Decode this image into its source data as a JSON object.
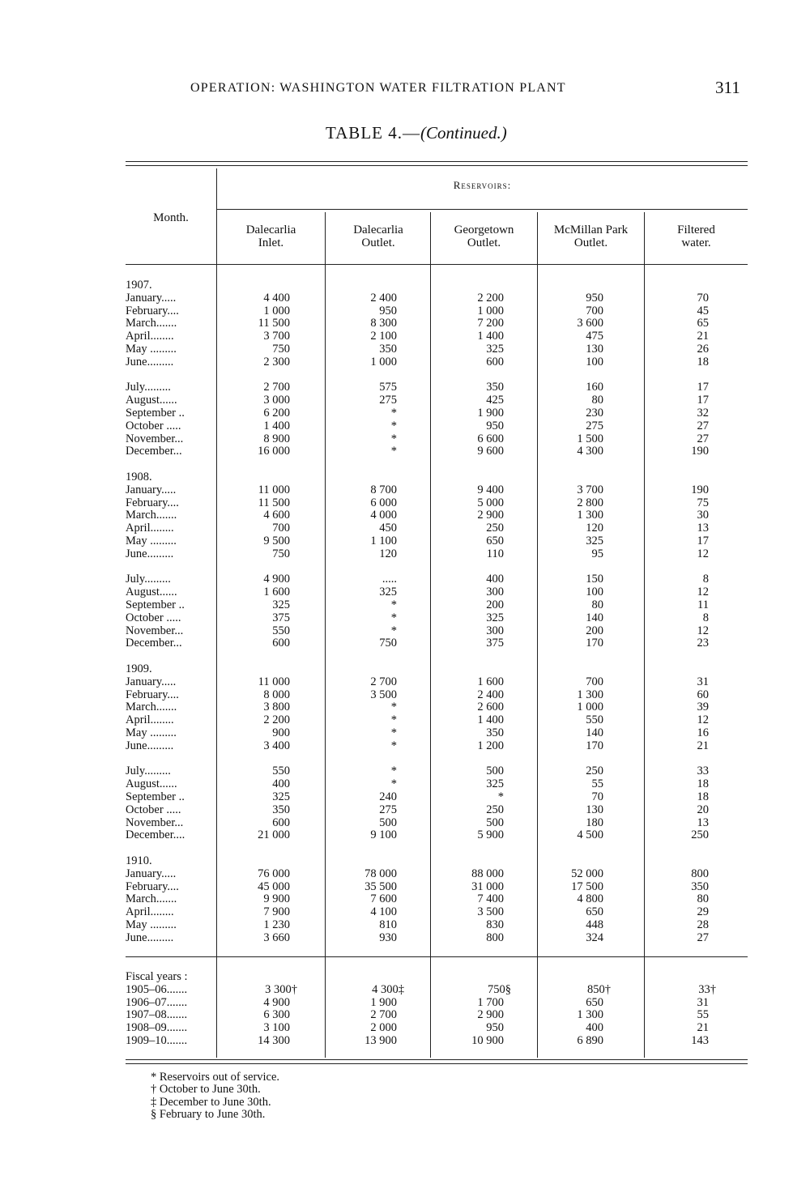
{
  "running_head": "OPERATION: WASHINGTON WATER FILTRATION PLANT",
  "page_number": "311",
  "table_title": "TABLE 4.—",
  "table_title_italic": "(Continued.)",
  "headers": {
    "month": "Month.",
    "group": "Reservoirs:",
    "columns": [
      [
        "Dalecarlia",
        "Inlet."
      ],
      [
        "Dalecarlia",
        "Outlet."
      ],
      [
        "Georgetown",
        "Outlet."
      ],
      [
        "McMillan Park",
        "Outlet."
      ],
      [
        "Filtered",
        "water."
      ]
    ]
  },
  "sections": [
    {
      "year": "1907.",
      "rows": [
        [
          "January.....",
          "4 400",
          "2 400",
          "2 200",
          "950",
          "70"
        ],
        [
          "February....",
          "1 000",
          "950",
          "1 000",
          "700",
          "45"
        ],
        [
          "March.......",
          "11 500",
          "8 300",
          "7 200",
          "3 600",
          "65"
        ],
        [
          "April........",
          "3 700",
          "2 100",
          "1 400",
          "475",
          "21"
        ],
        [
          "May .........",
          "750",
          "350",
          "325",
          "130",
          "26"
        ],
        [
          "June.........",
          "2 300",
          "1 000",
          "600",
          "100",
          "18"
        ],
        null,
        [
          "July.........",
          "2 700",
          "575",
          "350",
          "160",
          "17"
        ],
        [
          "August......",
          "3 000",
          "275",
          "425",
          "80",
          "17"
        ],
        [
          "September ..",
          "6 200",
          "*",
          "1 900",
          "230",
          "32"
        ],
        [
          "October .....",
          "1 400",
          "*",
          "950",
          "275",
          "27"
        ],
        [
          "November...",
          "8 900",
          "*",
          "6 600",
          "1 500",
          "27"
        ],
        [
          "December...",
          "16 000",
          "*",
          "9 600",
          "4 300",
          "190"
        ]
      ]
    },
    {
      "year": "1908.",
      "rows": [
        [
          "January.....",
          "11 000",
          "8 700",
          "9 400",
          "3 700",
          "190"
        ],
        [
          "February....",
          "11 500",
          "6 000",
          "5 000",
          "2 800",
          "75"
        ],
        [
          "March.......",
          "4 600",
          "4 000",
          "2 900",
          "1 300",
          "30"
        ],
        [
          "April........",
          "700",
          "450",
          "250",
          "120",
          "13"
        ],
        [
          "May .........",
          "9 500",
          "1 100",
          "650",
          "325",
          "17"
        ],
        [
          "June.........",
          "750",
          "120",
          "110",
          "95",
          "12"
        ],
        null,
        [
          "July.........",
          "4 900",
          ".....",
          "400",
          "150",
          "8"
        ],
        [
          "August......",
          "1 600",
          "325",
          "300",
          "100",
          "12"
        ],
        [
          "September ..",
          "325",
          "*",
          "200",
          "80",
          "11"
        ],
        [
          "October .....",
          "375",
          "*",
          "325",
          "140",
          "8"
        ],
        [
          "November...",
          "550",
          "*",
          "300",
          "200",
          "12"
        ],
        [
          "December...",
          "600",
          "750",
          "375",
          "170",
          "23"
        ]
      ]
    },
    {
      "year": "1909.",
      "rows": [
        [
          "January.....",
          "11 000",
          "2 700",
          "1 600",
          "700",
          "31"
        ],
        [
          "February....",
          "8 000",
          "3 500",
          "2 400",
          "1 300",
          "60"
        ],
        [
          "March.......",
          "3 800",
          "*",
          "2 600",
          "1 000",
          "39"
        ],
        [
          "April........",
          "2 200",
          "*",
          "1 400",
          "550",
          "12"
        ],
        [
          "May .........",
          "900",
          "*",
          "350",
          "140",
          "16"
        ],
        [
          "June.........",
          "3 400",
          "*",
          "1 200",
          "170",
          "21"
        ],
        null,
        [
          "July.........",
          "550",
          "*",
          "500",
          "250",
          "33"
        ],
        [
          "August......",
          "400",
          "*",
          "325",
          "55",
          "18"
        ],
        [
          "September ..",
          "325",
          "240",
          "*",
          "70",
          "18"
        ],
        [
          "October .....",
          "350",
          "275",
          "250",
          "130",
          "20"
        ],
        [
          "November...",
          "600",
          "500",
          "500",
          "180",
          "13"
        ],
        [
          "December....",
          "21 000",
          "9 100",
          "5 900",
          "4 500",
          "250"
        ]
      ]
    },
    {
      "year": "1910.",
      "rows": [
        [
          "January.....",
          "76 000",
          "78 000",
          "88 000",
          "52 000",
          "800"
        ],
        [
          "February....",
          "45 000",
          "35 500",
          "31 000",
          "17 500",
          "350"
        ],
        [
          "March.......",
          "9 900",
          "7 600",
          "7 400",
          "4 800",
          "80"
        ],
        [
          "April........",
          "7 900",
          "4 100",
          "3 500",
          "650",
          "29"
        ],
        [
          "May .........",
          "1 230",
          "810",
          "830",
          "448",
          "28"
        ],
        [
          "June.........",
          "3 660",
          "930",
          "800",
          "324",
          "27"
        ]
      ]
    }
  ],
  "fiscal": {
    "label": "Fiscal years :",
    "rows": [
      [
        "1905–06.......",
        "3 300†",
        "4 300‡",
        "750§",
        "850†",
        "33†"
      ],
      [
        "1906–07.......",
        "4 900",
        "1 900",
        "1 700",
        "650",
        "31"
      ],
      [
        "1907–08.......",
        "6 300",
        "2 700",
        "2 900",
        "1 300",
        "55"
      ],
      [
        "1908–09.......",
        "3 100",
        "2 000",
        "950",
        "400",
        "21"
      ],
      [
        "1909–10.......",
        "14 300",
        "13 900",
        "10 900",
        "6 890",
        "143"
      ]
    ]
  },
  "footnotes": [
    "* Reservoirs out of service.",
    "† October to June 30th.",
    "‡ December to June 30th.",
    "§ February to June 30th."
  ]
}
